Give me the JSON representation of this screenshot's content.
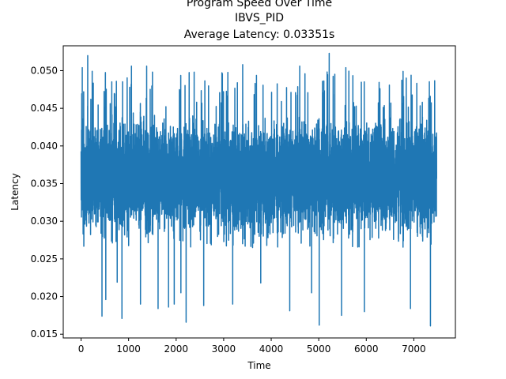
{
  "chart_data": {
    "type": "line",
    "title_lines": [
      "Program Speed Over Time",
      "IBVS_PID",
      "Average Latency: 0.03351s"
    ],
    "xlabel": "Time",
    "ylabel": "Latency",
    "xlim": [
      -375,
      7875
    ],
    "ylim": [
      0.0145,
      0.0533
    ],
    "xticks": [
      0,
      1000,
      2000,
      3000,
      4000,
      5000,
      6000,
      7000
    ],
    "xtick_labels": [
      "0",
      "1000",
      "2000",
      "3000",
      "4000",
      "5000",
      "6000",
      "7000"
    ],
    "yticks": [
      0.015,
      0.02,
      0.025,
      0.03,
      0.035,
      0.04,
      0.045,
      0.05
    ],
    "ytick_labels": [
      "0.015",
      "0.020",
      "0.025",
      "0.030",
      "0.035",
      "0.040",
      "0.045",
      "0.050"
    ],
    "grid": false,
    "legend": "none",
    "series": [
      {
        "color": "#1f77b4",
        "x_range": [
          0,
          7480
        ],
        "num_points": 7481,
        "mean": 0.03351,
        "typical_band": [
          0.027,
          0.045
        ],
        "min": 0.0161,
        "max": 0.0523,
        "notable_points": [
          {
            "x": 25,
            "y": 0.0504
          },
          {
            "x": 140,
            "y": 0.052
          },
          {
            "x": 440,
            "y": 0.0174
          },
          {
            "x": 520,
            "y": 0.0196
          },
          {
            "x": 760,
            "y": 0.0219
          },
          {
            "x": 860,
            "y": 0.0171
          },
          {
            "x": 1060,
            "y": 0.0506
          },
          {
            "x": 1250,
            "y": 0.019
          },
          {
            "x": 1380,
            "y": 0.0506
          },
          {
            "x": 1620,
            "y": 0.0184
          },
          {
            "x": 1840,
            "y": 0.0186
          },
          {
            "x": 1960,
            "y": 0.019
          },
          {
            "x": 2100,
            "y": 0.0205
          },
          {
            "x": 2210,
            "y": 0.0166
          },
          {
            "x": 2580,
            "y": 0.0188
          },
          {
            "x": 3190,
            "y": 0.019
          },
          {
            "x": 3400,
            "y": 0.0508
          },
          {
            "x": 3780,
            "y": 0.0218
          },
          {
            "x": 4390,
            "y": 0.0181
          },
          {
            "x": 4600,
            "y": 0.0506
          },
          {
            "x": 4850,
            "y": 0.0205
          },
          {
            "x": 5010,
            "y": 0.0162
          },
          {
            "x": 5220,
            "y": 0.0523
          },
          {
            "x": 5480,
            "y": 0.0175
          },
          {
            "x": 5570,
            "y": 0.0504
          },
          {
            "x": 5960,
            "y": 0.018
          },
          {
            "x": 6930,
            "y": 0.0184
          },
          {
            "x": 7350,
            "y": 0.0161
          },
          {
            "x": 7430,
            "y": 0.0322
          }
        ]
      }
    ]
  }
}
